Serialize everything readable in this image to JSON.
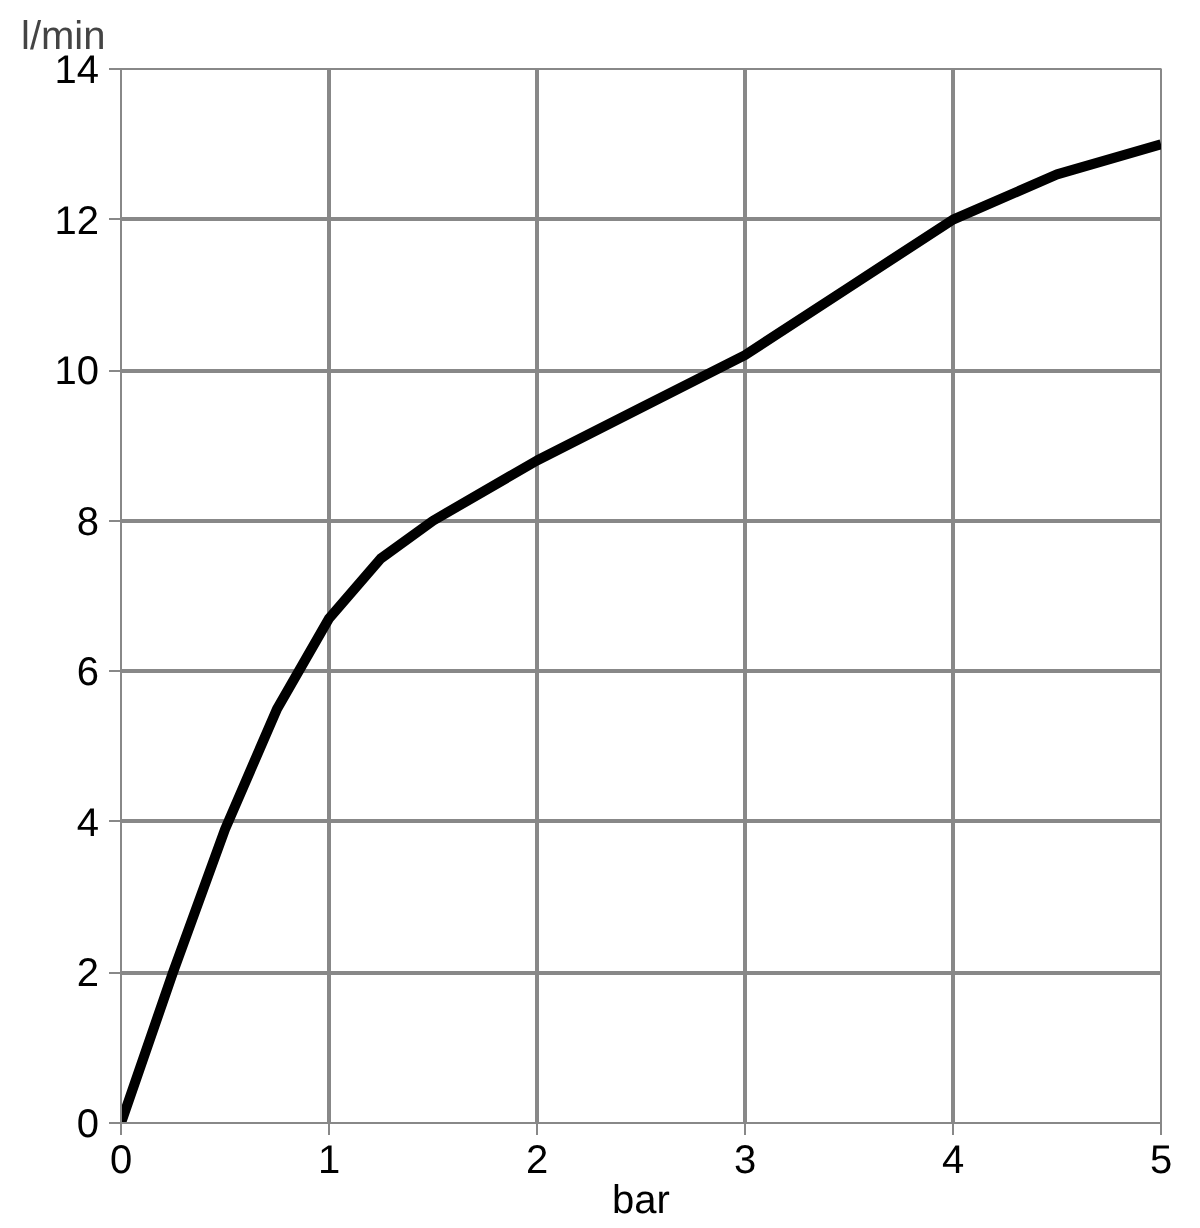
{
  "chart_data": {
    "type": "line",
    "ylabel": "l/min",
    "xlabel": "bar",
    "x": [
      0,
      0.25,
      0.5,
      0.75,
      1,
      1.25,
      1.5,
      2,
      2.5,
      3,
      3.5,
      4,
      4.5,
      5
    ],
    "series": [
      {
        "color": "#000000",
        "values": [
          0,
          2.0,
          3.9,
          5.5,
          6.7,
          7.5,
          8.0,
          8.8,
          9.5,
          10.2,
          11.1,
          12.0,
          12.6,
          13.0
        ]
      }
    ],
    "xlim": [
      0,
      5
    ],
    "ylim": [
      0,
      14
    ],
    "xticks": [
      0,
      1,
      2,
      3,
      4,
      5
    ],
    "yticks": [
      0,
      2,
      4,
      6,
      8,
      10,
      12,
      14
    ],
    "grid": true,
    "marker": "none",
    "line_style": "solid"
  }
}
